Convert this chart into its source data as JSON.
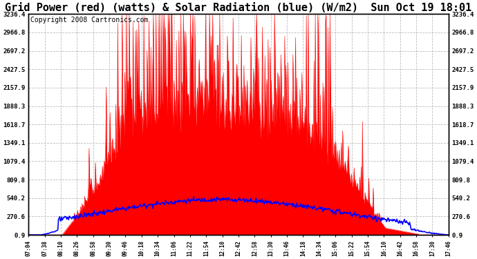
{
  "title": "Grid Power (red) (watts) & Solar Radiation (blue) (W/m2)  Sun Oct 19 18:01",
  "copyright": "Copyright 2008 Cartronics.com",
  "yticks": [
    0.9,
    270.6,
    540.2,
    809.8,
    1079.4,
    1349.1,
    1618.7,
    1888.3,
    2157.9,
    2427.5,
    2697.2,
    2966.8,
    3236.4
  ],
  "ymin": 0.9,
  "ymax": 3236.4,
  "xtick_labels": [
    "07:04",
    "07:38",
    "08:10",
    "08:26",
    "08:58",
    "09:30",
    "09:46",
    "10:18",
    "10:34",
    "11:06",
    "11:22",
    "11:54",
    "12:10",
    "12:42",
    "12:58",
    "13:30",
    "13:46",
    "14:18",
    "14:34",
    "15:06",
    "15:22",
    "15:54",
    "16:10",
    "16:42",
    "16:58",
    "17:30",
    "17:46"
  ],
  "bg_color": "#ffffff",
  "plot_bg_color": "#ffffff",
  "grid_color": "#bbbbbb",
  "red_color": "#ff0000",
  "blue_color": "#0000ff",
  "title_fontsize": 11,
  "copyright_fontsize": 7
}
